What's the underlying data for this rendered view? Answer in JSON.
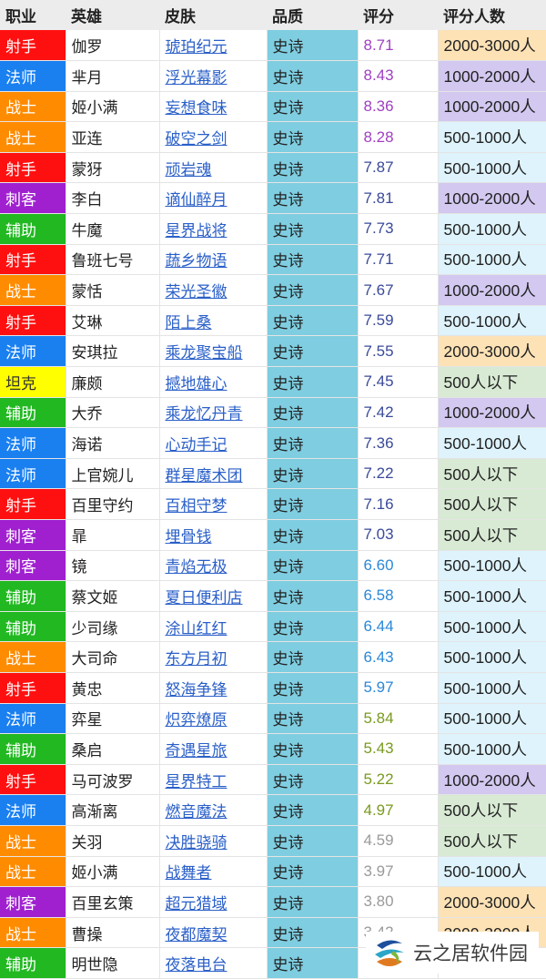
{
  "headers": [
    "职业",
    "英雄",
    "皮肤",
    "品质",
    "评分",
    "评分人数"
  ],
  "role_colors": {
    "射手": "#ff1010",
    "法师": "#1a80f0",
    "战士": "#ff8c00",
    "刺客": "#a020d0",
    "辅助": "#22b822",
    "坦克": "#ffff00"
  },
  "count_colors": {
    "2000-3000人": "#fde2b6",
    "1000-2000人": "#d2c8f0",
    "500-1000人": "#def3fb",
    "500人以下": "#d8ead4"
  },
  "score_colors": {
    "8": "#a040c0",
    "7": "#3a4a9a",
    "6": "#2b88d8",
    "5b": "#2b88d8",
    "5": "#7a9a20",
    "4b": "#7a9a20",
    "4": "#9a9a9a",
    "3": "#9a9a9a"
  },
  "rows": [
    [
      "射手",
      "伽罗",
      "琥珀纪元",
      "史诗",
      "8.71",
      "2000-3000人"
    ],
    [
      "法师",
      "芈月",
      "浮光幕影",
      "史诗",
      "8.43",
      "1000-2000人"
    ],
    [
      "战士",
      "姬小满",
      "妄想食味",
      "史诗",
      "8.36",
      "1000-2000人"
    ],
    [
      "战士",
      "亚连",
      "破空之剑",
      "史诗",
      "8.28",
      "500-1000人"
    ],
    [
      "射手",
      "蒙犽",
      "顽岩魂",
      "史诗",
      "7.87",
      "500-1000人"
    ],
    [
      "刺客",
      "李白",
      "谪仙醉月",
      "史诗",
      "7.81",
      "1000-2000人"
    ],
    [
      "辅助",
      "牛魔",
      "星界战将",
      "史诗",
      "7.73",
      "500-1000人"
    ],
    [
      "射手",
      "鲁班七号",
      "蔬乡物语",
      "史诗",
      "7.71",
      "500-1000人"
    ],
    [
      "战士",
      "蒙恬",
      "荣光圣徽",
      "史诗",
      "7.67",
      "1000-2000人"
    ],
    [
      "射手",
      "艾琳",
      "陌上桑",
      "史诗",
      "7.59",
      "500-1000人"
    ],
    [
      "法师",
      "安琪拉",
      "乘龙聚宝船",
      "史诗",
      "7.55",
      "2000-3000人"
    ],
    [
      "坦克",
      "廉颇",
      "撼地雄心",
      "史诗",
      "7.45",
      "500人以下"
    ],
    [
      "辅助",
      "大乔",
      "乘龙忆丹青",
      "史诗",
      "7.42",
      "1000-2000人"
    ],
    [
      "法师",
      "海诺",
      "心动手记",
      "史诗",
      "7.36",
      "500-1000人"
    ],
    [
      "法师",
      "上官婉儿",
      "群星魔术团",
      "史诗",
      "7.22",
      "500人以下"
    ],
    [
      "射手",
      "百里守约",
      "百相守梦",
      "史诗",
      "7.16",
      "500人以下"
    ],
    [
      "刺客",
      "暃",
      "埋骨钱",
      "史诗",
      "7.03",
      "500人以下"
    ],
    [
      "刺客",
      "镜",
      "青焰无极",
      "史诗",
      "6.60",
      "500-1000人"
    ],
    [
      "辅助",
      "蔡文姬",
      "夏日便利店",
      "史诗",
      "6.58",
      "500-1000人"
    ],
    [
      "辅助",
      "少司缘",
      "涂山红红",
      "史诗",
      "6.44",
      "500-1000人"
    ],
    [
      "战士",
      "大司命",
      "东方月初",
      "史诗",
      "6.43",
      "500-1000人"
    ],
    [
      "射手",
      "黄忠",
      "怒海争锋",
      "史诗",
      "5.97",
      "500-1000人"
    ],
    [
      "法师",
      "弈星",
      "炽弈燎原",
      "史诗",
      "5.84",
      "500-1000人"
    ],
    [
      "辅助",
      "桑启",
      "奇遇星旅",
      "史诗",
      "5.43",
      "500-1000人"
    ],
    [
      "射手",
      "马可波罗",
      "星界特工",
      "史诗",
      "5.22",
      "1000-2000人"
    ],
    [
      "法师",
      "高渐离",
      "燃音魔法",
      "史诗",
      "4.97",
      "500人以下"
    ],
    [
      "战士",
      "关羽",
      "决胜骁骑",
      "史诗",
      "4.59",
      "500人以下"
    ],
    [
      "战士",
      "姬小满",
      "战舞者",
      "史诗",
      "3.97",
      "500-1000人"
    ],
    [
      "刺客",
      "百里玄策",
      "超元猎域",
      "史诗",
      "3.80",
      "2000-3000人"
    ],
    [
      "战士",
      "曹操",
      "夜都魔契",
      "史诗",
      "3.42",
      "2000-3000人"
    ],
    [
      "辅助",
      "明世隐",
      "夜落电台",
      "史诗",
      "",
      ""
    ]
  ],
  "watermark": "云之居软件园"
}
